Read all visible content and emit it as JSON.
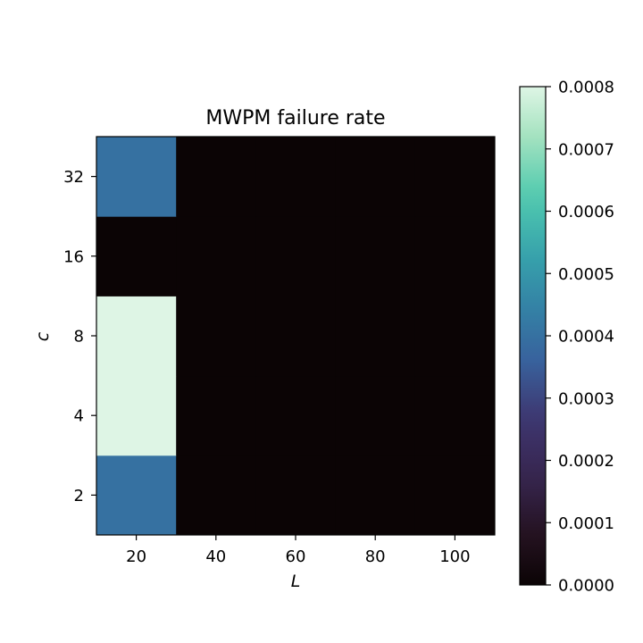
{
  "chart_data": {
    "type": "heatmap",
    "title": "MWPM failure rate",
    "xlabel": "L",
    "ylabel": "c",
    "x_categories": [
      20,
      40,
      60,
      80,
      100
    ],
    "y_categories": [
      2,
      4,
      8,
      16,
      32
    ],
    "x_ticks": [
      "20",
      "40",
      "60",
      "80",
      "100"
    ],
    "y_ticks": [
      "2",
      "4",
      "8",
      "16",
      "32"
    ],
    "values": [
      [
        0.0004,
        0.0,
        0.0,
        0.0,
        0.0
      ],
      [
        0.0008,
        0.0,
        0.0,
        0.0,
        0.0
      ],
      [
        0.0008,
        0.0,
        0.0,
        0.0,
        0.0
      ],
      [
        0.0,
        0.0,
        0.0,
        0.0,
        0.0
      ],
      [
        0.0004,
        0.0,
        0.0,
        0.0,
        0.0
      ]
    ],
    "value_range": [
      0.0,
      0.0008
    ],
    "colormap": "mako",
    "colorbar": {
      "ticks": [
        "0.0000",
        "0.0001",
        "0.0002",
        "0.0003",
        "0.0004",
        "0.0005",
        "0.0006",
        "0.0007",
        "0.0008"
      ],
      "placement": "right"
    },
    "grid": false
  }
}
